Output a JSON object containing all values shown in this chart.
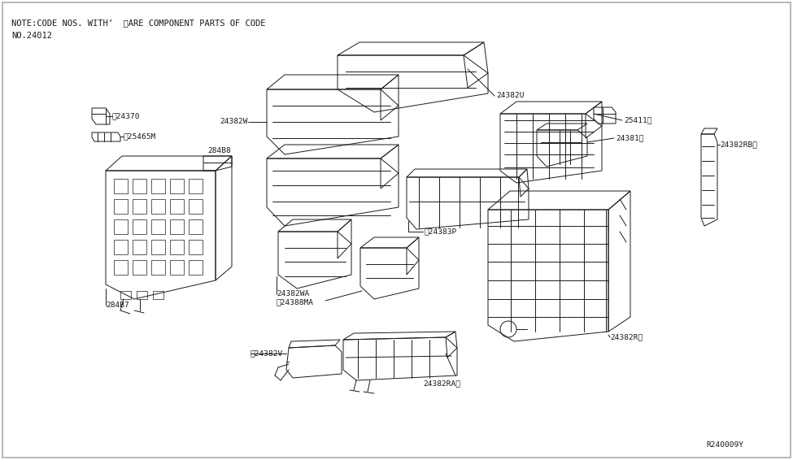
{
  "bg_color": "#ffffff",
  "line_color": "#1a1a1a",
  "note_line1": "NOTE:CODE NOS. WITH’  ※ARE COMPONENT PARTS OF CODE",
  "note_line2": "NO.24012",
  "ref_code": "R240009Y",
  "lw": 0.7,
  "label_fontsize": 6.8,
  "note_fontsize": 7.5
}
